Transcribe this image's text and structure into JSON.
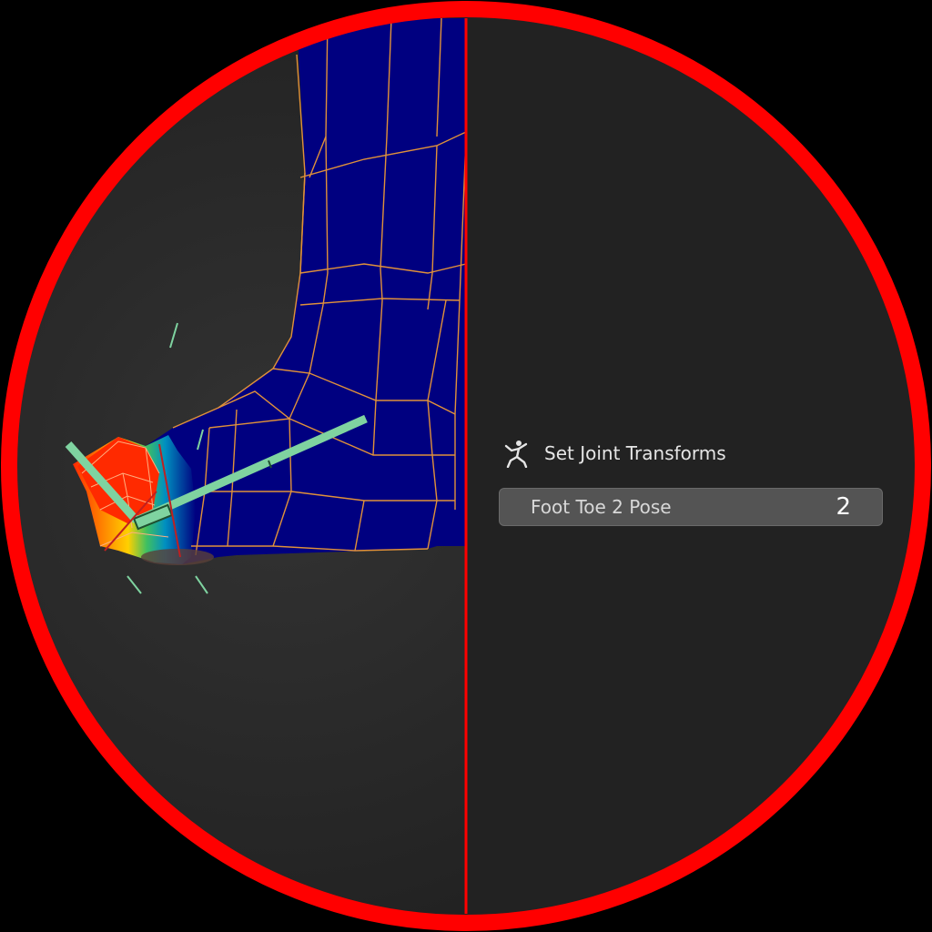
{
  "operator_panel": {
    "title": "Set Joint Transforms",
    "icon": "pose-figure-icon",
    "field": {
      "label": "Foot Toe 2 Pose",
      "value": "2"
    }
  },
  "colors": {
    "ring": "#ff0000",
    "background": "#232323",
    "mesh_fill": "#000080",
    "mesh_edges": "#e0913a",
    "bone": "#7fd3a0"
  }
}
